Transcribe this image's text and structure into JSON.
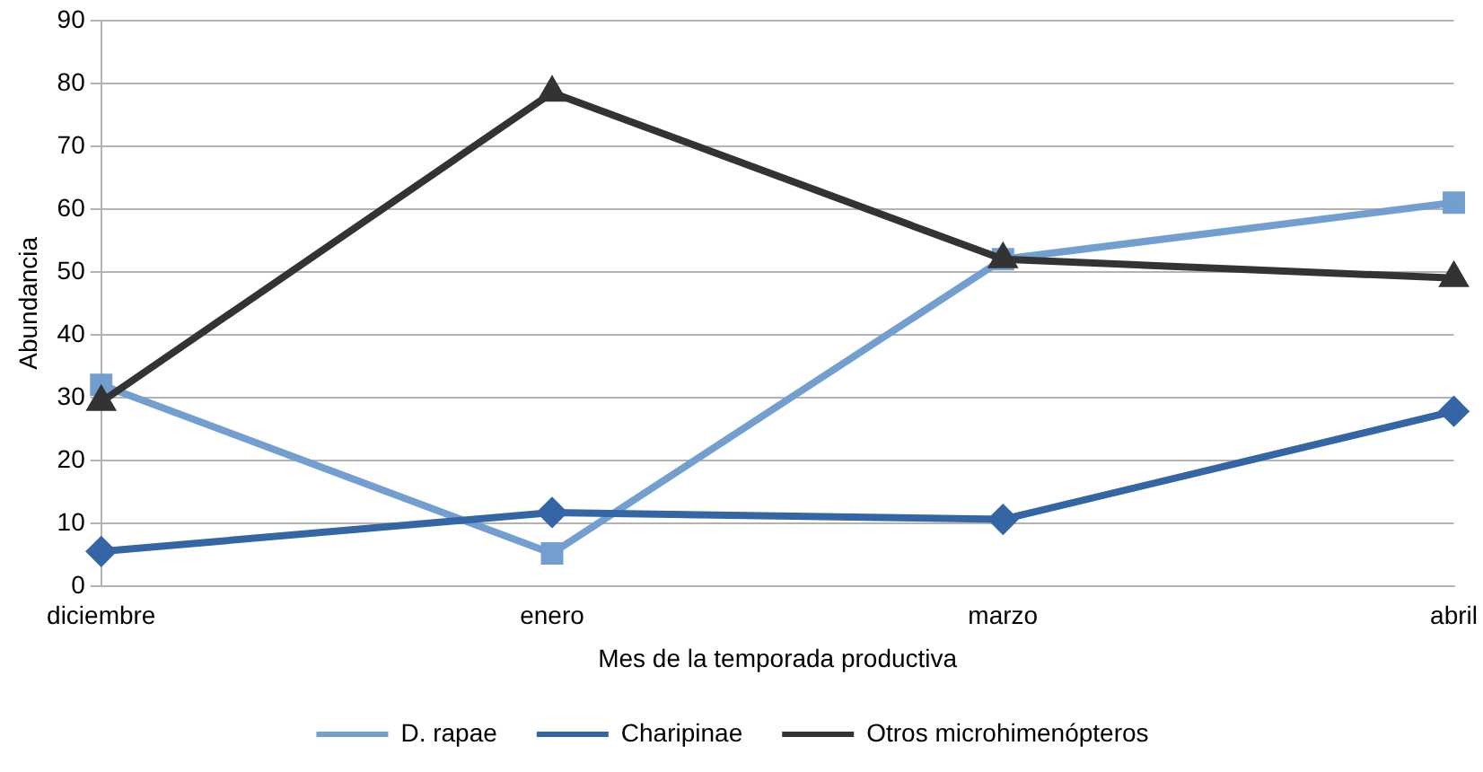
{
  "chart_data": {
    "type": "line",
    "xlabel": "Mes de la temporada productiva",
    "ylabel": "Abundancia",
    "categories": [
      "diciembre",
      "enero",
      "marzo",
      "abril"
    ],
    "series": [
      {
        "name": "D. rapae",
        "color": "#729fcf",
        "values": [
          32,
          5.2,
          52,
          61
        ],
        "marker": "square"
      },
      {
        "name": "Charipinae",
        "color": "#3465a4",
        "values": [
          5.5,
          11.7,
          10.6,
          27.8
        ],
        "marker": "diamond"
      },
      {
        "name": "Otros microhimenópteros",
        "color": "#333333",
        "values": [
          29.3,
          78.5,
          52,
          49
        ],
        "marker": "triangle"
      }
    ],
    "ylim": [
      0,
      90
    ],
    "yticks": [
      0,
      10,
      20,
      30,
      40,
      50,
      60,
      70,
      80,
      90
    ],
    "grid": "y",
    "legend": "bottom",
    "line_style": "solid"
  }
}
